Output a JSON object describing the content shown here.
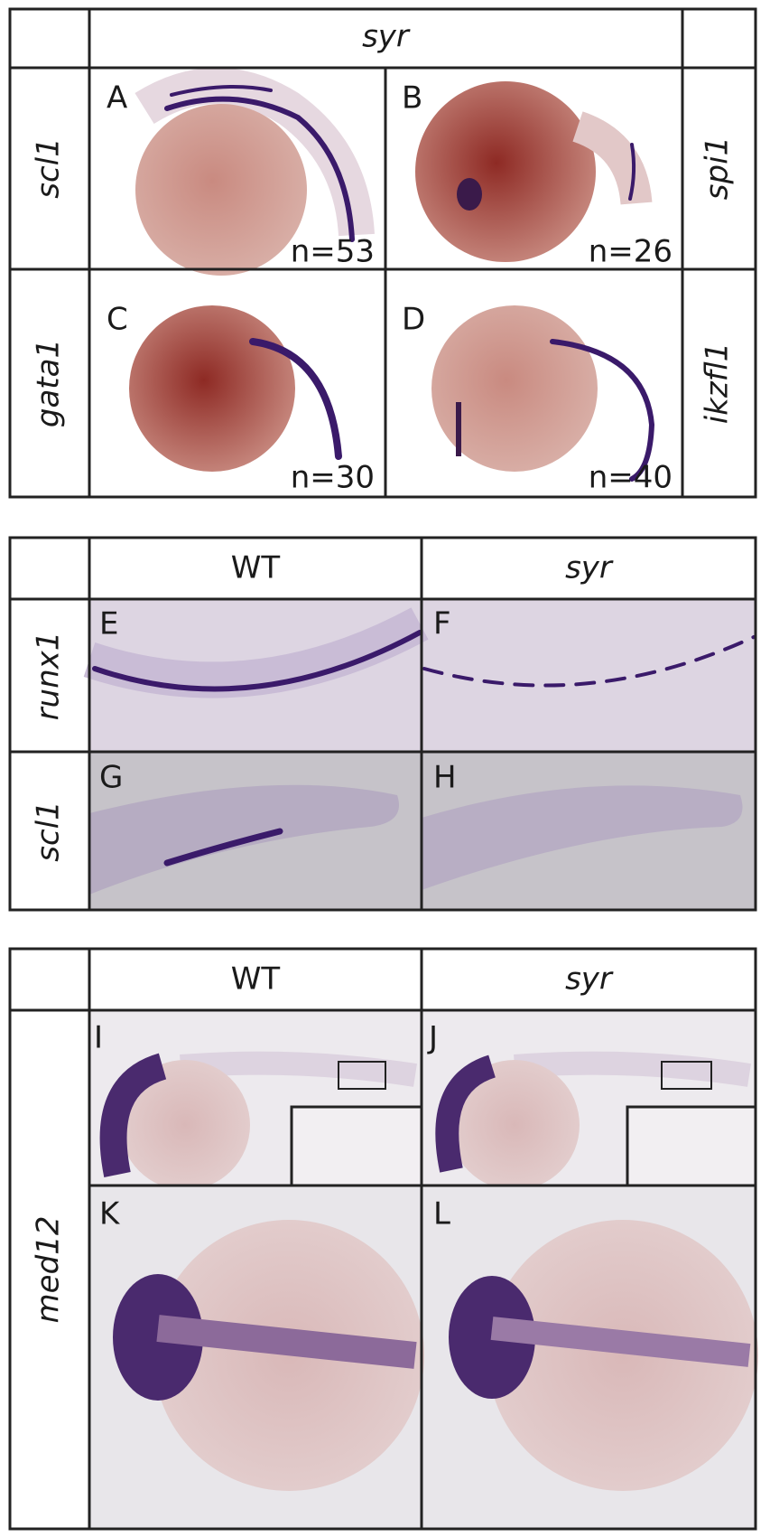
{
  "panel1": {
    "header": "syr",
    "rows": [
      {
        "left": "scl1",
        "right": "spi1",
        "cells": [
          {
            "letter": "A",
            "count": "n=53"
          },
          {
            "letter": "B",
            "count": "n=26"
          }
        ]
      },
      {
        "left": "gata1",
        "right": "ikzfl1",
        "cells": [
          {
            "letter": "C",
            "count": "n=30"
          },
          {
            "letter": "D",
            "count": "n=40"
          }
        ]
      }
    ]
  },
  "panel2": {
    "columns": [
      "WT",
      "syr"
    ],
    "rows": [
      {
        "label": "runx1",
        "cells": [
          "E",
          "F"
        ]
      },
      {
        "label": "scl1",
        "cells": [
          "G",
          "H"
        ]
      }
    ]
  },
  "panel3": {
    "columns": [
      "WT",
      "syr"
    ],
    "row_label": "med12",
    "cells": [
      "I",
      "J",
      "K",
      "L"
    ]
  }
}
